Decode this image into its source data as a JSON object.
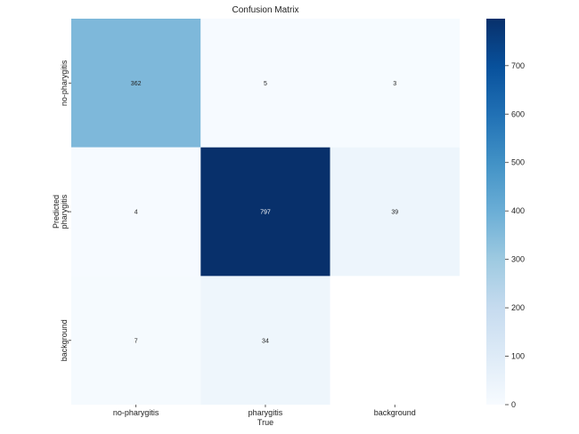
{
  "chart_data": {
    "type": "heatmap",
    "title": "Confusion Matrix",
    "xlabel": "True",
    "ylabel": "Predicted",
    "x_categories": [
      "no-pharygitis",
      "pharygitis",
      "background"
    ],
    "y_categories": [
      "no-pharygitis",
      "pharygitis",
      "background"
    ],
    "values": [
      [
        362,
        5,
        3
      ],
      [
        4,
        797,
        39
      ],
      [
        7,
        34,
        null
      ]
    ],
    "colorbar": {
      "range": [
        0,
        797
      ],
      "ticks": [
        0,
        100,
        200,
        300,
        400,
        500,
        600,
        700
      ],
      "colormap": "Blues"
    }
  }
}
